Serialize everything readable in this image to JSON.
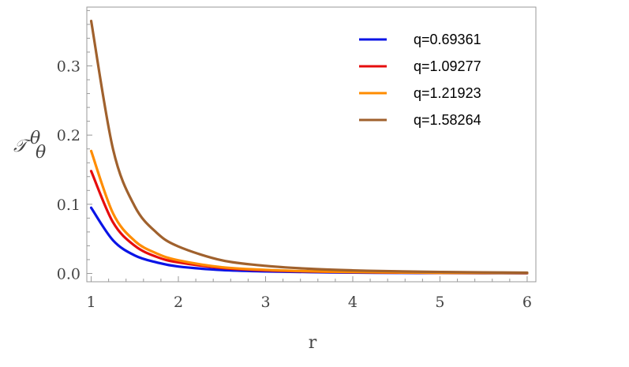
{
  "chart_data": {
    "type": "line",
    "xlabel": "r",
    "ylabel": "𝒯",
    "ylabel_sup": "θ",
    "ylabel_sub": "θ",
    "xlim": [
      0.95,
      6.1
    ],
    "ylim": [
      -0.012,
      0.385
    ],
    "x_ticks": [
      1,
      2,
      3,
      4,
      5,
      6
    ],
    "x_tick_labels": [
      "1",
      "2",
      "3",
      "4",
      "5",
      "6"
    ],
    "y_ticks": [
      0.0,
      0.1,
      0.2,
      0.3
    ],
    "y_tick_labels": [
      "0.0",
      "0.1",
      "0.2",
      "0.3"
    ],
    "grid": false,
    "legend_position": "top-right",
    "series": [
      {
        "name": "q=0.69361",
        "color": "#0a14e6",
        "x": [
          1,
          1.25,
          1.5,
          1.75,
          2,
          2.5,
          3,
          3.5,
          4,
          4.5,
          5,
          5.5,
          6
        ],
        "values": [
          0.095,
          0.048,
          0.026,
          0.016,
          0.01,
          0.005,
          0.003,
          0.002,
          0.0012,
          0.0008,
          0.0006,
          0.0004,
          0.0003
        ]
      },
      {
        "name": "q=1.09277",
        "color": "#e60d0d",
        "x": [
          1,
          1.25,
          1.5,
          1.75,
          2,
          2.5,
          3,
          3.5,
          4,
          4.5,
          5,
          5.5,
          6
        ],
        "values": [
          0.148,
          0.074,
          0.04,
          0.024,
          0.016,
          0.008,
          0.0045,
          0.0028,
          0.0019,
          0.0013,
          0.0009,
          0.0007,
          0.0005
        ]
      },
      {
        "name": "q=1.21923",
        "color": "#ff8c00",
        "x": [
          1,
          1.25,
          1.5,
          1.75,
          2,
          2.5,
          3,
          3.5,
          4,
          4.5,
          5,
          5.5,
          6
        ],
        "values": [
          0.177,
          0.087,
          0.047,
          0.029,
          0.019,
          0.009,
          0.0052,
          0.0032,
          0.0021,
          0.0015,
          0.001,
          0.0008,
          0.0006
        ]
      },
      {
        "name": "q=1.58264",
        "color": "#a0612d",
        "x": [
          1,
          1.25,
          1.5,
          1.75,
          2,
          2.5,
          3,
          3.5,
          4,
          4.5,
          5,
          5.5,
          6
        ],
        "values": [
          0.365,
          0.18,
          0.097,
          0.059,
          0.039,
          0.019,
          0.011,
          0.0068,
          0.0045,
          0.0031,
          0.0022,
          0.0016,
          0.0012
        ]
      }
    ]
  }
}
